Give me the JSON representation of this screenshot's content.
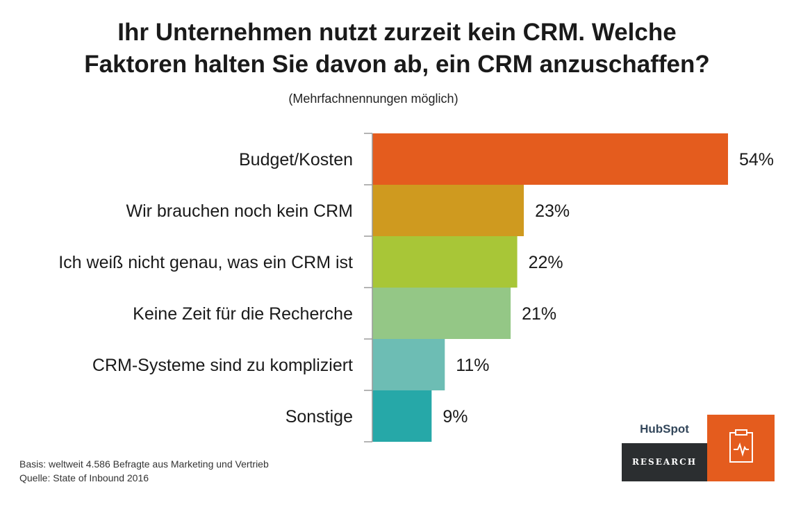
{
  "title_line1": "Ihr Unternehmen nutzt zurzeit kein CRM. Welche",
  "title_line2": "Faktoren halten Sie davon ab, ein CRM anzuschaffen?",
  "subtitle": "(Mehrfachnennungen möglich)",
  "chart_data": {
    "type": "bar",
    "orientation": "horizontal",
    "categories": [
      "Budget/Kosten",
      "Wir brauchen noch kein CRM",
      "Ich weiß nicht genau, was ein CRM ist",
      "Keine Zeit für die Recherche",
      "CRM-Systeme sind zu kompliziert",
      "Sonstige"
    ],
    "values": [
      54,
      23,
      22,
      21,
      11,
      9
    ],
    "value_labels": [
      "54%",
      "23%",
      "22%",
      "21%",
      "11%",
      "9%"
    ],
    "colors": [
      "#e45c1e",
      "#cf9a1f",
      "#a8c637",
      "#94c786",
      "#6dbdb4",
      "#26a8a8"
    ],
    "unit": "%",
    "grid": false,
    "legend": "none"
  },
  "footer": {
    "basis": "Basis: weltweit 4.586 Befragte aus Marketing und Vertrieb",
    "source": "Quelle: State of Inbound 2016"
  },
  "logo": {
    "brand": "HubSpot",
    "label": "RESEARCH",
    "icon": "clipboard-pulse-icon",
    "accent": "#e45c1e"
  }
}
